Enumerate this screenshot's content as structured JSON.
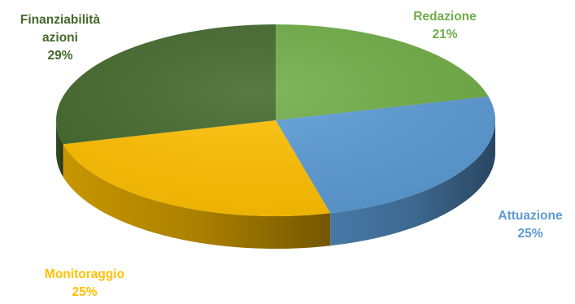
{
  "chart_data": {
    "type": "pie",
    "style": "3d",
    "title": "",
    "slices": [
      {
        "label": "Redazione",
        "value": 21,
        "value_label": "21%",
        "color": "#70ad47"
      },
      {
        "label": "Attuazione",
        "value": 25,
        "value_label": "25%",
        "color": "#5b9bd5"
      },
      {
        "label": "Monitoraggio",
        "value": 25,
        "value_label": "25%",
        "color": "#ffc000"
      },
      {
        "label": "Finanziabilità\nazioni",
        "value": 29,
        "value_label": "29%",
        "color": "#43682b"
      }
    ]
  }
}
